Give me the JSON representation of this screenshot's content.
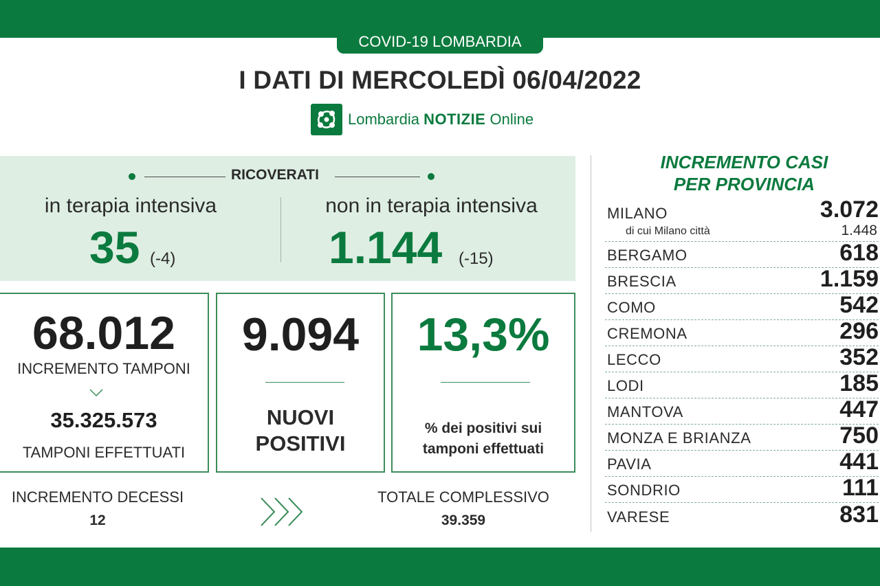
{
  "header": {
    "tag": "COVID-19 LOMBARDIA",
    "title": "I DATI DI MERCOLEDÌ 06/04/2022",
    "brand_prefix": "Lombardia",
    "brand_main": "NOTIZIE",
    "brand_suffix": "Online"
  },
  "ricoverati": {
    "title": "RICOVERATI",
    "intensive": {
      "label": "in terapia intensiva",
      "value": "35",
      "delta": "(-4)"
    },
    "non_intensive": {
      "label": "non in terapia intensiva",
      "value": "1.144",
      "delta": "(-15)"
    }
  },
  "tamponi": {
    "increment": "68.012",
    "increment_label": "INCREMENTO TAMPONI",
    "total": "35.325.573",
    "total_label": "TAMPONI EFFETTUATI"
  },
  "positivi": {
    "value": "9.094",
    "label_line1": "NUOVI",
    "label_line2": "POSITIVI"
  },
  "percentuale": {
    "value": "13,3%",
    "label_line1": "% dei positivi sui",
    "label_line2": "tamponi effettuati"
  },
  "decessi": {
    "increment_label": "INCREMENTO DECESSI",
    "increment": "12",
    "total_label": "TOTALE COMPLESSIVO",
    "total": "39.359"
  },
  "province": {
    "title_line1": "INCREMENTO CASI",
    "title_line2": "PER PROVINCIA",
    "milano": {
      "name": "MILANO",
      "value": "3.072",
      "sub_name": "di cui Milano città",
      "sub_value": "1.448"
    },
    "items": [
      {
        "name": "BERGAMO",
        "value": "618"
      },
      {
        "name": "BRESCIA",
        "value": "1.159"
      },
      {
        "name": "COMO",
        "value": "542"
      },
      {
        "name": "CREMONA",
        "value": "296"
      },
      {
        "name": "LECCO",
        "value": "352"
      },
      {
        "name": "LODI",
        "value": "185"
      },
      {
        "name": "MANTOVA",
        "value": "447"
      },
      {
        "name": "MONZA E BRIANZA",
        "value": "750"
      },
      {
        "name": "PAVIA",
        "value": "441"
      },
      {
        "name": "SONDRIO",
        "value": "111"
      },
      {
        "name": "VARESE",
        "value": "831"
      }
    ]
  },
  "colors": {
    "brand_green": "#0b7a3e",
    "panel_green": "#deeee3"
  },
  "icons": {
    "logo": "lombardia-rosa-camuna-icon",
    "arrows": "triple-chevron-right-icon"
  }
}
